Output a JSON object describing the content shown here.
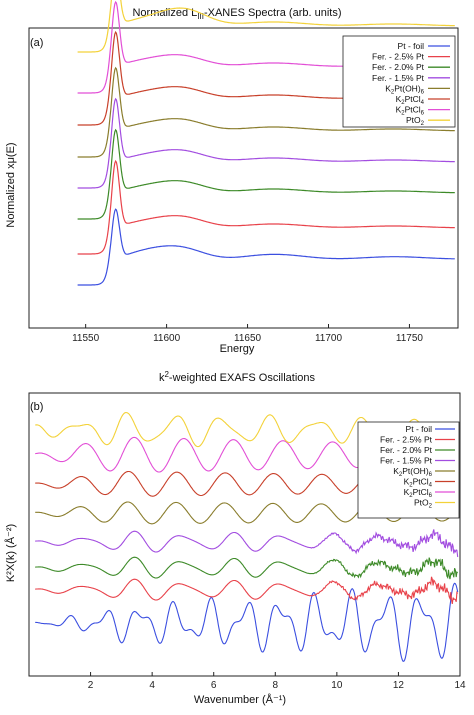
{
  "chart_data": [
    {
      "type": "line",
      "panel": "(a)",
      "title_parts": [
        "Normalized L",
        "III",
        "-XANES Spectra (arb. units)"
      ],
      "xlabel": "Energy",
      "ylabel": "Normalized xμ(E)",
      "xlim": [
        11515,
        11780
      ],
      "xticks": [
        11550,
        11600,
        11650,
        11700,
        11750
      ],
      "legend_position": "top-right",
      "series": [
        {
          "name": "Pt - foil",
          "color": "#3b4fe0",
          "offset": 0
        },
        {
          "name": "Fer. - 2.5% Pt",
          "color": "#e8424a",
          "offset": 1
        },
        {
          "name": "Fer. - 2.0% Pt",
          "color": "#3d8a28",
          "offset": 2
        },
        {
          "name": "Fer. - 1.5% Pt",
          "color": "#a24de0",
          "offset": 3
        },
        {
          "name": "K2Pt(OH)6",
          "color": "#8a7d2d",
          "offset": 4
        },
        {
          "name": "K2PtCl4",
          "color": "#c8402a",
          "offset": 5
        },
        {
          "name": "K2PtCl6",
          "color": "#e24fd6",
          "offset": 6
        },
        {
          "name": "PtO2",
          "color": "#f3d23a",
          "offset": 7
        }
      ],
      "legend_display": [
        [
          "Pt - foil"
        ],
        [
          "Fer. - 2.5% Pt"
        ],
        [
          "Fer. - 2.0% Pt"
        ],
        [
          "Fer. - 1.5% Pt"
        ],
        [
          "K",
          "2",
          "Pt(OH)",
          "6"
        ],
        [
          "K",
          "2",
          "PtCl",
          "4"
        ],
        [
          "K",
          "2",
          "PtCl",
          "6"
        ],
        [
          "PtO",
          "2"
        ]
      ]
    },
    {
      "type": "line",
      "panel": "(b)",
      "title_parts": [
        "k",
        "2",
        "-weighted EXAFS Oscillations"
      ],
      "xlabel": "Wavenumber (Å⁻¹)",
      "ylabel": "K²X(k) (Å⁻²)",
      "xlim": [
        0,
        14
      ],
      "xticks": [
        2,
        4,
        6,
        8,
        10,
        12,
        14
      ],
      "legend_position": "top-right",
      "series": [
        {
          "name": "Pt - foil",
          "color": "#3b4fe0",
          "offset": 0
        },
        {
          "name": "Fer. - 2.5% Pt",
          "color": "#e8424a",
          "offset": 1
        },
        {
          "name": "Fer. - 2.0% Pt",
          "color": "#3d8a28",
          "offset": 2
        },
        {
          "name": "Fer. - 1.5% Pt",
          "color": "#a24de0",
          "offset": 3
        },
        {
          "name": "K2Pt(OH)6",
          "color": "#8a7d2d",
          "offset": 4
        },
        {
          "name": "K2PtCl4",
          "color": "#c8402a",
          "offset": 5
        },
        {
          "name": "K2PtCl6",
          "color": "#e24fd6",
          "offset": 6
        },
        {
          "name": "PtO2",
          "color": "#f3d23a",
          "offset": 7
        }
      ],
      "legend_display": [
        [
          "Pt - foil"
        ],
        [
          "Fer. - 2.5% Pt"
        ],
        [
          "Fer. - 2.0% Pt"
        ],
        [
          "Fer. - 1.5% Pt"
        ],
        [
          "K",
          "2",
          "Pt(OH)",
          "6"
        ],
        [
          "K",
          "2",
          "PtCl",
          "4"
        ],
        [
          "K",
          "2",
          "PtCl",
          "6"
        ],
        [
          "PtO",
          "2"
        ]
      ]
    }
  ]
}
